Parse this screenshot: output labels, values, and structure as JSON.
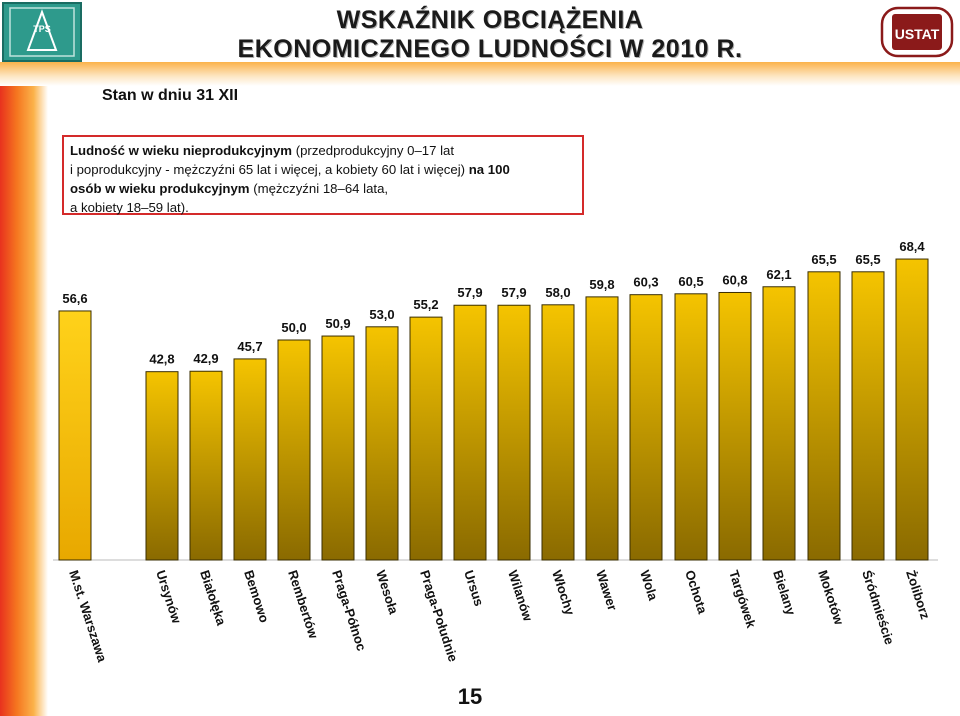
{
  "header": {
    "title_line1": "WSKAŹNIK OBCIĄŻENIA",
    "title_line2": "EKONOMICZNEGO LUDNOŚCI W 2010 R.",
    "subtitle": "Stan w dniu 31 XII",
    "logo_left_text": "TPS",
    "logo_right_text": "USTAT"
  },
  "note": {
    "line1_bold": "Ludność w wieku nieprodukcyjnym",
    "line1_rest": " (przedprodukcyjny 0–17 lat",
    "line2_rest": "i poprodukcyjny - mężczyźni 65 lat i więcej, a kobiety 60 lat i więcej) ",
    "line2_bold": "na 100",
    "line3_bold": "osób w wieku produkcyjnym",
    "line3_rest": " (mężczyźni 18–64 lata,",
    "line4_rest": "a kobiety 18–59 lat)."
  },
  "footer": {
    "page_number": "15"
  },
  "colors": {
    "bar_top": "#f5c400",
    "bar_bottom": "#8a6a00",
    "total_bar_top": "#ffd21a",
    "total_bar_bottom": "#e8a800"
  },
  "chart_data": {
    "type": "bar",
    "categories": [
      "M.st. Warszawa",
      "Ursynów",
      "Białołęka",
      "Bemowo",
      "Rembertów",
      "Praga-Północ",
      "Wesoła",
      "Praga-Południe",
      "Ursus",
      "Wilanów",
      "Włochy",
      "Wawer",
      "Wola",
      "Ochota",
      "Targówek",
      "Bielany",
      "Mokotów",
      "Śródmieście",
      "Żoliborz"
    ],
    "values": [
      56.6,
      42.8,
      42.9,
      45.7,
      50.0,
      50.9,
      53.0,
      55.2,
      57.9,
      57.9,
      58.0,
      59.8,
      60.3,
      60.5,
      60.8,
      62.1,
      65.5,
      65.5,
      68.4
    ],
    "value_labels": [
      "56,6",
      "42,8",
      "42,9",
      "45,7",
      "50,0",
      "50,9",
      "53,0",
      "55,2",
      "57,9",
      "57,9",
      "58,0",
      "59,8",
      "60,3",
      "60,5",
      "60,8",
      "62,1",
      "65,5",
      "65,5",
      "68,4"
    ],
    "ylim": [
      0,
      75
    ],
    "title": "",
    "xlabel": "",
    "ylabel": "",
    "grid": false,
    "legend": false
  }
}
